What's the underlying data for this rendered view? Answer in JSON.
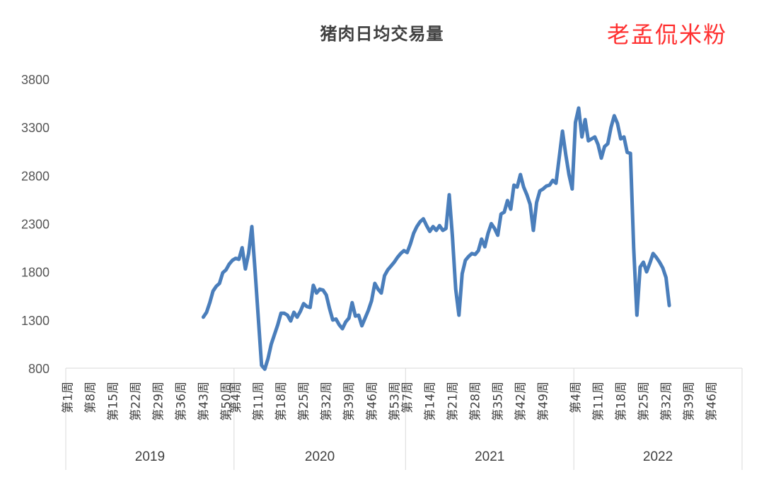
{
  "title": "猪肉日均交易量",
  "watermark": "老孟侃米粉",
  "colors": {
    "line": "#4a7ebb",
    "axis": "#d9d9d9",
    "watermark": "#ff3030"
  },
  "chart_data": {
    "type": "line",
    "title": "猪肉日均交易量",
    "ylim": [
      800,
      3800
    ],
    "yticks": [
      800,
      1300,
      1800,
      2300,
      2800,
      3300,
      3800
    ],
    "grid": false,
    "legend": "none",
    "years": [
      {
        "year": "2019",
        "weeks": 52,
        "tick_labels": [
          "第1周",
          "第8周",
          "第15周",
          "第22周",
          "第29周",
          "第36周",
          "第43周",
          "第50周"
        ]
      },
      {
        "year": "2020",
        "weeks": 53,
        "tick_labels": [
          "第4周",
          "第11周",
          "第18周",
          "第25周",
          "第32周",
          "第39周",
          "第46周",
          "第53周"
        ]
      },
      {
        "year": "2021",
        "weeks": 52,
        "tick_labels": [
          "第7周",
          "第14周",
          "第21周",
          "第28周",
          "第35周",
          "第42周",
          "第49周"
        ]
      },
      {
        "year": "2022",
        "weeks": 52,
        "tick_labels": [
          "第4周",
          "第11周",
          "第18周",
          "第25周",
          "第32周",
          "第39周",
          "第46周"
        ]
      }
    ],
    "series": [
      {
        "values": [
          null,
          null,
          null,
          null,
          null,
          null,
          null,
          null,
          null,
          null,
          null,
          null,
          null,
          null,
          null,
          null,
          null,
          null,
          null,
          null,
          null,
          null,
          null,
          null,
          null,
          null,
          null,
          null,
          null,
          null,
          null,
          null,
          null,
          null,
          null,
          null,
          null,
          null,
          null,
          null,
          null,
          null,
          1330,
          1380,
          1480,
          1600,
          1650,
          1680,
          1790,
          1820,
          1880,
          1920,
          1940,
          1930,
          2050,
          1830,
          1990,
          2270,
          1810,
          1320,
          830,
          790,
          900,
          1050,
          1150,
          1250,
          1370,
          1370,
          1350,
          1290,
          1380,
          1330,
          1390,
          1470,
          1440,
          1430,
          1660,
          1580,
          1620,
          1610,
          1560,
          1420,
          1300,
          1310,
          1250,
          1210,
          1280,
          1320,
          1480,
          1340,
          1350,
          1240,
          1320,
          1400,
          1500,
          1680,
          1620,
          1580,
          1760,
          1820,
          1860,
          1900,
          1950,
          1990,
          2020,
          2000,
          2090,
          2200,
          2270,
          2320,
          2350,
          2280,
          2220,
          2270,
          2230,
          2280,
          2230,
          2250,
          2600,
          2160,
          1620,
          1350,
          1780,
          1920,
          1960,
          1990,
          1980,
          2020,
          2140,
          2060,
          2200,
          2300,
          2250,
          2180,
          2400,
          2420,
          2540,
          2450,
          2700,
          2680,
          2810,
          2680,
          2600,
          2500,
          2230,
          2520,
          2640,
          2660,
          2690,
          2700,
          2750,
          2720,
          2990,
          3260,
          3020,
          2810,
          2660,
          3350,
          3500,
          3200,
          3380,
          3160,
          3180,
          3200,
          3120,
          2980,
          3100,
          3130,
          3300,
          3420,
          3340,
          3180,
          3200,
          3040,
          3030,
          2050,
          1350,
          1850,
          1900,
          1800,
          1890,
          1990,
          1950,
          1900,
          1840,
          1740,
          1450
        ]
      }
    ]
  }
}
